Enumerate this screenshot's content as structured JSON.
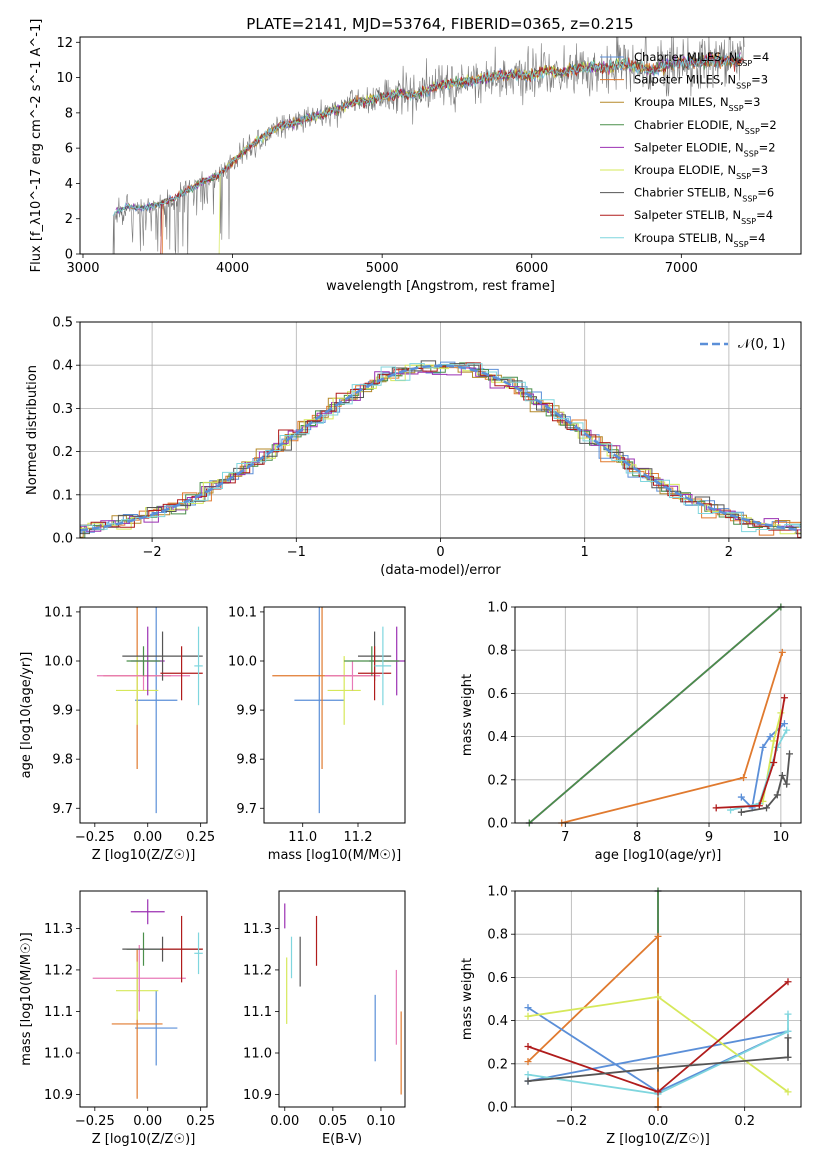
{
  "colors": {
    "chabrier_miles": "#5b8fd8",
    "salpeter_miles": "#e07a2f",
    "kroupa_miles": "#b5892a",
    "chabrier_elodie": "#4a8f4a",
    "salpeter_elodie": "#9b30b3",
    "kroupa_elodie": "#d6e85a",
    "chabrier_stelib": "#555555",
    "salpeter_stelib": "#b01c1c",
    "kroupa_stelib": "#7fd6de",
    "pink": "#e87ab8",
    "normal_curve": "#5b8fd8"
  },
  "chart_data": [
    {
      "id": "spectrum",
      "type": "line",
      "title": "PLATE=2141, MJD=53764, FIBERID=0365, z=0.215",
      "xlabel": "wavelength [Angstrom, rest frame]",
      "ylabel": "Flux [f_λ10^-17 erg cm^-2 s^-1 A^-1]",
      "xlim": [
        2980,
        7800
      ],
      "ylim": [
        0,
        12.3
      ],
      "xticks": [
        3000,
        4000,
        5000,
        6000,
        7000
      ],
      "yticks": [
        0,
        2,
        4,
        6,
        8,
        10,
        12
      ],
      "legend_position": "right",
      "legend": [
        {
          "label": "Chabrier MILES, N",
          "sub": "SSP",
          "suffix": "=4",
          "color_key": "chabrier_miles"
        },
        {
          "label": "Salpeter MILES, N",
          "sub": "SSP",
          "suffix": "=3",
          "color_key": "salpeter_miles"
        },
        {
          "label": "Kroupa MILES, N",
          "sub": "SSP",
          "suffix": "=3",
          "color_key": "kroupa_miles"
        },
        {
          "label": "Chabrier ELODIE, N",
          "sub": "SSP",
          "suffix": "=2",
          "color_key": "chabrier_elodie"
        },
        {
          "label": "Salpeter ELODIE, N",
          "sub": "SSP",
          "suffix": "=2",
          "color_key": "salpeter_elodie"
        },
        {
          "label": "Kroupa ELODIE, N",
          "sub": "SSP",
          "suffix": "=3",
          "color_key": "kroupa_elodie"
        },
        {
          "label": "Chabrier STELIB, N",
          "sub": "SSP",
          "suffix": "=6",
          "color_key": "chabrier_stelib"
        },
        {
          "label": "Salpeter STELIB, N",
          "sub": "SSP",
          "suffix": "=4",
          "color_key": "salpeter_stelib"
        },
        {
          "label": "Kroupa STELIB, N",
          "sub": "SSP",
          "suffix": "=4",
          "color_key": "kroupa_stelib"
        }
      ],
      "continuum": {
        "x": [
          3200,
          3300,
          3400,
          3500,
          3600,
          3700,
          3800,
          3900,
          4000,
          4100,
          4200,
          4300,
          4400,
          4500,
          4600,
          4700,
          4800,
          4900,
          5000,
          5100,
          5200,
          5300,
          5400,
          5500,
          5600,
          5700,
          5800,
          5900,
          6000,
          6100,
          6200,
          6300,
          6400,
          6500,
          6600,
          6700,
          6800,
          6900,
          7000,
          7100,
          7200,
          7300,
          7400
        ],
        "y": [
          2.3,
          2.7,
          2.6,
          2.8,
          3.1,
          3.6,
          4.1,
          4.4,
          5.2,
          6.0,
          6.6,
          7.2,
          7.4,
          7.7,
          7.9,
          8.2,
          8.6,
          8.7,
          8.9,
          9.1,
          9.0,
          9.3,
          9.6,
          9.7,
          9.8,
          10.0,
          10.1,
          10.2,
          10.1,
          10.4,
          10.3,
          10.5,
          10.6,
          10.5,
          10.8,
          10.6,
          10.4,
          10.7,
          10.9,
          10.8,
          11.0,
          10.9,
          11.0
        ]
      },
      "model_cutoffs": {
        "salpeter_miles": [
          3530,
          7400
        ],
        "kroupa_elodie": [
          3910,
          6790
        ],
        "salpeter_stelib": [
          3520,
          7420
        ],
        "kroupa_stelib": [
          3200,
          7400
        ]
      },
      "data_range": [
        3200,
        7420
      ]
    },
    {
      "id": "residuals",
      "type": "histogram",
      "xlabel": "(data-model)/error",
      "ylabel": "Normed distribution",
      "xlim": [
        -2.5,
        2.5
      ],
      "ylim": [
        0,
        0.5
      ],
      "xticks": [
        -2,
        -1,
        0,
        1,
        2
      ],
      "xtick_labels": [
        "−2",
        "−1",
        "0",
        "1",
        "2"
      ],
      "yticks": [
        0.0,
        0.1,
        0.2,
        0.3,
        0.4,
        0.5
      ],
      "ytick_labels": [
        "0.0",
        "0.1",
        "0.2",
        "0.3",
        "0.4",
        "0.5"
      ],
      "legend_position": "upper right",
      "legend_label": "𝒩(0, 1)",
      "bin_width": 0.1,
      "grid": true
    },
    {
      "id": "age_vs_z",
      "type": "errorbar",
      "xlabel": "Z [log10(Z/Z☉)]",
      "ylabel": "age  [log10(age/yr)]",
      "xlim": [
        -0.32,
        0.28
      ],
      "ylim": [
        9.67,
        10.11
      ],
      "xticks": [
        -0.25,
        0.0,
        0.25
      ],
      "xtick_labels": [
        "−0.25",
        "0.00",
        "0.25"
      ],
      "yticks": [
        9.7,
        9.8,
        9.9,
        10.0,
        10.1
      ],
      "ytick_labels": [
        "9.7",
        "9.8",
        "9.9",
        "10.0",
        "10.1"
      ],
      "points": [
        {
          "color_key": "chabrier_miles",
          "x": 0.04,
          "xerr": 0.1,
          "y": 9.92,
          "yerr": 0.23
        },
        {
          "color_key": "salpeter_miles",
          "x": -0.05,
          "xerr": 0.16,
          "y": 9.97,
          "yerr": 0.19
        },
        {
          "color_key": "kroupa_elodie",
          "x": -0.05,
          "xerr": 0.1,
          "y": 9.94,
          "yerr": 0.07
        },
        {
          "color_key": "pink",
          "x": -0.02,
          "xerr": 0.22,
          "y": 9.97,
          "yerr": 0.03
        },
        {
          "color_key": "salpeter_elodie",
          "x": 0.0,
          "xerr": 0.08,
          "y": 10.0,
          "yerr": 0.07
        },
        {
          "color_key": "chabrier_elodie",
          "x": -0.02,
          "xerr": 0.08,
          "y": 10.0,
          "yerr": 0.03
        },
        {
          "color_key": "chabrier_stelib",
          "x": 0.07,
          "xerr": 0.19,
          "y": 10.01,
          "yerr": 0.05
        },
        {
          "color_key": "salpeter_stelib",
          "x": 0.16,
          "xerr": 0.1,
          "y": 9.975,
          "yerr": 0.055
        },
        {
          "color_key": "kroupa_stelib",
          "x": 0.24,
          "xerr": 0.02,
          "y": 9.99,
          "yerr": 0.08
        }
      ]
    },
    {
      "id": "age_vs_mass",
      "type": "errorbar",
      "xlabel": "mass [log10(M/M☉)]",
      "ylabel": "",
      "xlim": [
        10.86,
        11.37
      ],
      "ylim": [
        9.67,
        10.11
      ],
      "xticks": [
        11.0,
        11.2
      ],
      "xtick_labels": [
        "11.0",
        "11.2"
      ],
      "yticks": [
        9.7,
        9.8,
        9.9,
        10.0,
        10.1
      ],
      "ytick_labels": [
        "9.7",
        "9.8",
        "9.9",
        "10.0",
        "10.1"
      ],
      "points": [
        {
          "color_key": "chabrier_miles",
          "x": 11.06,
          "xerr": 0.09,
          "y": 9.92,
          "yerr": 0.23
        },
        {
          "color_key": "salpeter_miles",
          "x": 11.07,
          "xerr": 0.18,
          "y": 9.97,
          "yerr": 0.19
        },
        {
          "color_key": "kroupa_elodie",
          "x": 11.15,
          "xerr": 0.06,
          "y": 9.94,
          "yerr": 0.07
        },
        {
          "color_key": "pink",
          "x": 11.18,
          "xerr": 0.1,
          "y": 9.97,
          "yerr": 0.03
        },
        {
          "color_key": "salpeter_elodie",
          "x": 11.34,
          "xerr": 0.1,
          "y": 10.0,
          "yerr": 0.07
        },
        {
          "color_key": "chabrier_elodie",
          "x": 11.25,
          "xerr": 0.1,
          "y": 10.0,
          "yerr": 0.03
        },
        {
          "color_key": "chabrier_stelib",
          "x": 11.26,
          "xerr": 0.06,
          "y": 10.01,
          "yerr": 0.05
        },
        {
          "color_key": "salpeter_stelib",
          "x": 11.26,
          "xerr": 0.06,
          "y": 9.975,
          "yerr": 0.055
        },
        {
          "color_key": "kroupa_stelib",
          "x": 11.29,
          "xerr": 0.03,
          "y": 9.99,
          "yerr": 0.08
        }
      ]
    },
    {
      "id": "weight_vs_age",
      "type": "line",
      "xlabel": "age  [log10(age/yr)]",
      "ylabel": "mass weight",
      "xlim": [
        6.3,
        10.28
      ],
      "ylim": [
        0,
        1
      ],
      "xticks": [
        7,
        8,
        9,
        10
      ],
      "xtick_labels": [
        "7",
        "8",
        "9",
        "10"
      ],
      "yticks": [
        0.0,
        0.2,
        0.4,
        0.6,
        0.8,
        1.0
      ],
      "ytick_labels": [
        "0.0",
        "0.2",
        "0.4",
        "0.6",
        "0.8",
        "1.0"
      ],
      "grid": true,
      "series": [
        {
          "color_key": "salpeter_elodie",
          "x": [
            6.5,
            10.0
          ],
          "y": [
            0.0,
            1.0
          ]
        },
        {
          "color_key": "chabrier_elodie",
          "x": [
            6.5,
            10.0
          ],
          "y": [
            0.0,
            1.0
          ]
        },
        {
          "color_key": "salpeter_miles",
          "x": [
            6.95,
            9.48,
            10.02
          ],
          "y": [
            0.0,
            0.21,
            0.79
          ]
        },
        {
          "color_key": "chabrier_miles",
          "x": [
            9.45,
            9.6,
            9.75,
            9.85,
            10.05
          ],
          "y": [
            0.12,
            0.07,
            0.35,
            0.4,
            0.46
          ]
        },
        {
          "color_key": "kroupa_elodie",
          "x": [
            9.75,
            9.9,
            10.0
          ],
          "y": [
            0.1,
            0.38,
            0.51
          ]
        },
        {
          "color_key": "kroupa_stelib",
          "x": [
            9.3,
            9.7,
            9.95,
            10.08
          ],
          "y": [
            0.06,
            0.09,
            0.35,
            0.43
          ]
        },
        {
          "color_key": "salpeter_stelib",
          "x": [
            9.1,
            9.7,
            9.9,
            10.05
          ],
          "y": [
            0.07,
            0.08,
            0.28,
            0.58
          ]
        },
        {
          "color_key": "chabrier_stelib",
          "x": [
            9.45,
            9.8,
            9.95,
            10.02,
            10.08,
            10.12
          ],
          "y": [
            0.05,
            0.07,
            0.13,
            0.22,
            0.18,
            0.32
          ]
        }
      ]
    },
    {
      "id": "mass_vs_z",
      "type": "errorbar",
      "xlabel": "Z [log10(Z/Z☉)]",
      "ylabel": "mass [log10(M/M☉)]",
      "xlim": [
        -0.32,
        0.28
      ],
      "ylim": [
        10.87,
        11.39
      ],
      "xticks": [
        -0.25,
        0.0,
        0.25
      ],
      "xtick_labels": [
        "−0.25",
        "0.00",
        "0.25"
      ],
      "yticks": [
        10.9,
        11.0,
        11.1,
        11.2,
        11.3
      ],
      "ytick_labels": [
        "10.9",
        "11.0",
        "11.1",
        "11.2",
        "11.3"
      ],
      "points": [
        {
          "color_key": "chabrier_miles",
          "x": 0.04,
          "xerr": 0.1,
          "y": 11.06,
          "yerr": 0.09
        },
        {
          "color_key": "salpeter_miles",
          "x": -0.05,
          "xerr": 0.12,
          "y": 11.07,
          "yerr": 0.18
        },
        {
          "color_key": "kroupa_elodie",
          "x": -0.05,
          "xerr": 0.1,
          "y": 11.15,
          "yerr": 0.07
        },
        {
          "color_key": "pink",
          "x": -0.04,
          "xerr": 0.22,
          "y": 11.18,
          "yerr": 0.08
        },
        {
          "color_key": "salpeter_elodie",
          "x": 0.0,
          "xerr": 0.08,
          "y": 11.34,
          "yerr": 0.03
        },
        {
          "color_key": "chabrier_elodie",
          "x": -0.02,
          "xerr": 0.08,
          "y": 11.25,
          "yerr": 0.04
        },
        {
          "color_key": "chabrier_stelib",
          "x": 0.07,
          "xerr": 0.19,
          "y": 11.25,
          "yerr": 0.03
        },
        {
          "color_key": "salpeter_stelib",
          "x": 0.16,
          "xerr": 0.1,
          "y": 11.25,
          "yerr": 0.08
        },
        {
          "color_key": "kroupa_stelib",
          "x": 0.24,
          "xerr": 0.02,
          "y": 11.24,
          "yerr": 0.05
        }
      ]
    },
    {
      "id": "mass_vs_ebv",
      "type": "errorbar",
      "xlabel": "E(B-V)",
      "ylabel": "",
      "xlim": [
        -0.006,
        0.125
      ],
      "ylim": [
        10.87,
        11.39
      ],
      "xticks": [
        0.0,
        0.05,
        0.1
      ],
      "xtick_labels": [
        "0.00",
        "0.05",
        "0.10"
      ],
      "yticks": [
        10.9,
        11.0,
        11.1,
        11.2,
        11.3
      ],
      "ytick_labels": [
        "10.9",
        "11.0",
        "11.1",
        "11.2",
        "11.3"
      ],
      "points": [
        {
          "color_key": "salpeter_elodie",
          "x": 0.0,
          "xerr": 0.0,
          "y": 11.33,
          "yerr": 0.03
        },
        {
          "color_key": "kroupa_elodie",
          "x": 0.002,
          "xerr": 0.0,
          "y": 11.15,
          "yerr": 0.08
        },
        {
          "color_key": "kroupa_stelib",
          "x": 0.007,
          "xerr": 0.0,
          "y": 11.23,
          "yerr": 0.05
        },
        {
          "color_key": "chabrier_stelib",
          "x": 0.016,
          "xerr": 0.0,
          "y": 11.22,
          "yerr": 0.06
        },
        {
          "color_key": "salpeter_stelib",
          "x": 0.033,
          "xerr": 0.0,
          "y": 11.27,
          "yerr": 0.06
        },
        {
          "color_key": "chabrier_miles",
          "x": 0.094,
          "xerr": 0.0,
          "y": 11.06,
          "yerr": 0.08
        },
        {
          "color_key": "pink",
          "x": 0.116,
          "xerr": 0.0,
          "y": 11.11,
          "yerr": 0.09
        },
        {
          "color_key": "salpeter_miles",
          "x": 0.121,
          "xerr": 0.0,
          "y": 11.0,
          "yerr": 0.1
        }
      ]
    },
    {
      "id": "weight_vs_z",
      "type": "line",
      "xlabel": "Z [log10(Z/Z☉)]",
      "ylabel": "mass weight",
      "xlim": [
        -0.33,
        0.33
      ],
      "ylim": [
        0,
        1
      ],
      "xticks": [
        -0.2,
        0.0,
        0.2
      ],
      "xtick_labels": [
        "−0.2",
        "0.0",
        "0.2"
      ],
      "yticks": [
        0.0,
        0.2,
        0.4,
        0.6,
        0.8,
        1.0
      ],
      "ytick_labels": [
        "0.0",
        "0.2",
        "0.4",
        "0.6",
        "0.8",
        "1.0"
      ],
      "grid": true,
      "series": [
        {
          "color_key": "salpeter_elodie",
          "x": [
            0.0,
            0.0
          ],
          "y": [
            0.0,
            1.0
          ]
        },
        {
          "color_key": "chabrier_elodie",
          "x": [
            0.0,
            0.0
          ],
          "y": [
            0.0,
            1.0
          ]
        },
        {
          "color_key": "salpeter_miles",
          "x": [
            -0.3,
            0.0,
            0.0
          ],
          "y": [
            0.21,
            0.79,
            0.0
          ]
        },
        {
          "color_key": "chabrier_miles",
          "x": [
            -0.3,
            0.0,
            0.3,
            -0.3
          ],
          "y": [
            0.46,
            0.07,
            0.35,
            0.12
          ]
        },
        {
          "color_key": "kroupa_elodie",
          "x": [
            -0.3,
            0.0,
            0.3
          ],
          "y": [
            0.42,
            0.51,
            0.07
          ]
        },
        {
          "color_key": "kroupa_stelib",
          "x": [
            -0.3,
            0.0,
            0.3,
            0.3
          ],
          "y": [
            0.15,
            0.06,
            0.35,
            0.43
          ]
        },
        {
          "color_key": "salpeter_stelib",
          "x": [
            -0.3,
            0.0,
            0.3
          ],
          "y": [
            0.28,
            0.07,
            0.58
          ]
        },
        {
          "color_key": "chabrier_stelib",
          "x": [
            -0.3,
            0.0,
            0.3,
            0.3
          ],
          "y": [
            0.12,
            0.18,
            0.23,
            0.32
          ]
        }
      ]
    }
  ]
}
